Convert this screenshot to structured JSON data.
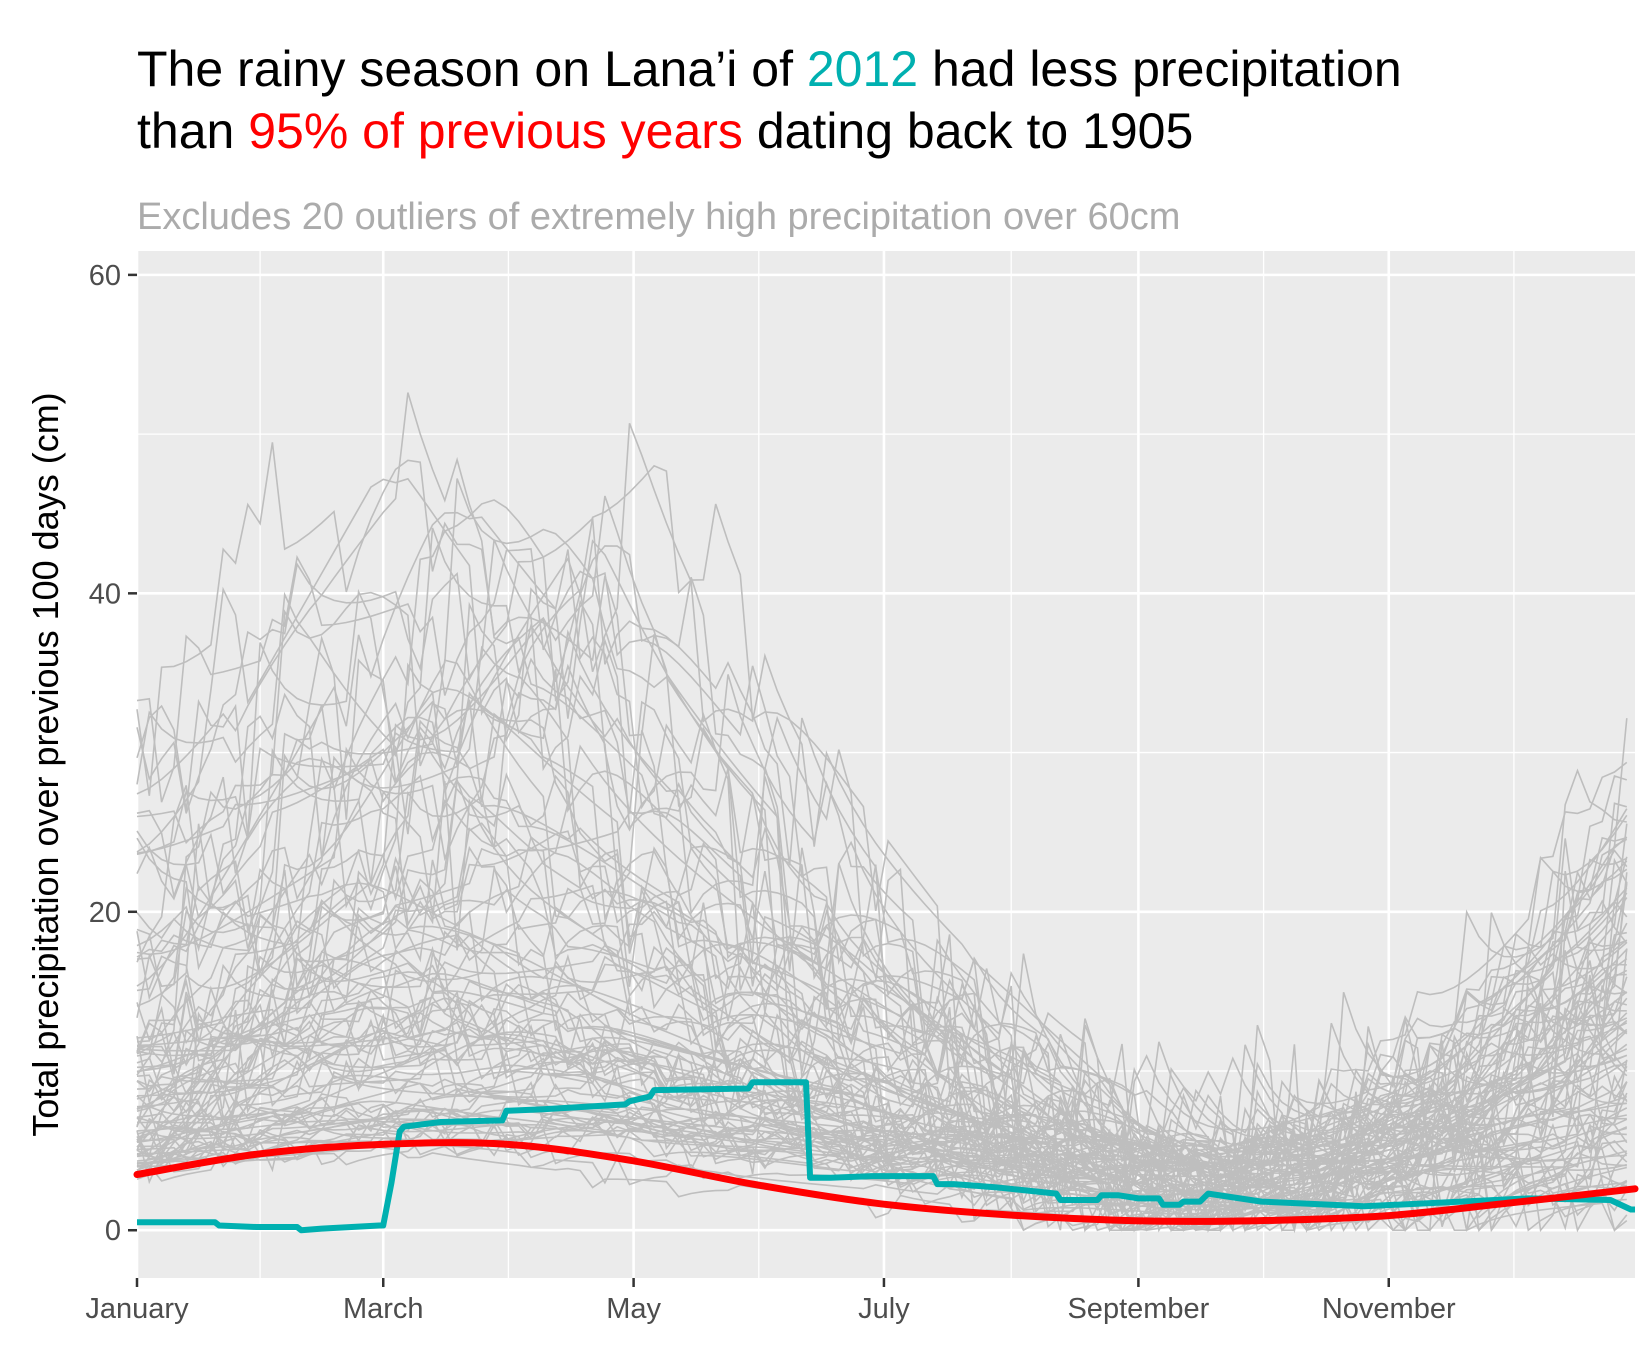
{
  "title": {
    "line1_a": "The rainy season on Lana’i of ",
    "line1_b": "2012",
    "line1_c": " had less precipitation",
    "line2_a": "than ",
    "line2_b": "95% of previous years",
    "line2_c": " dating back to 1905"
  },
  "subtitle": "Excludes 20 outliers of extremely high precipitation over 60cm",
  "colors": {
    "panel": "#ebebeb",
    "grid": "#ffffff",
    "background_lines": "#bebebe",
    "highlight": "#00b0b0",
    "threshold": "#ff0000"
  },
  "chart_data": {
    "type": "line",
    "title": "The rainy season on Lana’i of 2012 had less precipitation than 95% of previous years dating back to 1905",
    "xlabel": "",
    "ylabel": "Total precipitation over previous 100 days (cm)",
    "xlim": [
      1,
      366
    ],
    "ylim": [
      -3,
      61.5
    ],
    "grid": true,
    "x_ticks": [
      {
        "label": "January",
        "day": 1
      },
      {
        "label": "March",
        "day": 61
      },
      {
        "label": "May",
        "day": 122
      },
      {
        "label": "July",
        "day": 183
      },
      {
        "label": "September",
        "day": 245
      },
      {
        "label": "November",
        "day": 306
      }
    ],
    "y_ticks": [
      {
        "label": "0",
        "value": 0
      },
      {
        "label": "20",
        "value": 20
      },
      {
        "label": "40",
        "value": 40
      },
      {
        "label": "60",
        "value": 60
      }
    ],
    "series": [
      {
        "name": "2012",
        "role": "highlight",
        "x": [
          1,
          20,
          21,
          30,
          40,
          41,
          46,
          60,
          61,
          63,
          65,
          66,
          75,
          90,
          91,
          100,
          120,
          121,
          126,
          127,
          150,
          151,
          152,
          160,
          164,
          165,
          170,
          180,
          190,
          195,
          196,
          200,
          205,
          210,
          225,
          226,
          235,
          236,
          240,
          245,
          250,
          251,
          255,
          256,
          260,
          262,
          275,
          300,
          340,
          360,
          365,
          366
        ],
        "y": [
          0.5,
          0.5,
          0.3,
          0.2,
          0.2,
          0,
          0.1,
          0.3,
          0.3,
          3,
          6.2,
          6.5,
          6.8,
          6.9,
          7.5,
          7.6,
          7.9,
          8.1,
          8.4,
          8.8,
          8.9,
          9.3,
          9.3,
          9.3,
          9.3,
          3.3,
          3.3,
          3.4,
          3.4,
          3.4,
          2.9,
          2.9,
          2.8,
          2.7,
          2.3,
          1.9,
          1.9,
          2.2,
          2.2,
          2.0,
          2.0,
          1.6,
          1.6,
          1.8,
          1.8,
          2.3,
          1.8,
          1.5,
          2.0,
          1.9,
          1.3,
          1.3
        ]
      },
      {
        "name": "95% of previous years",
        "role": "threshold",
        "x": [
          1,
          31,
          61,
          91,
          121,
          151,
          181,
          211,
          244,
          274,
          305,
          335,
          366
        ],
        "y": [
          3.5,
          4.8,
          5.4,
          5.4,
          4.4,
          2.9,
          1.7,
          1.0,
          0.6,
          0.6,
          0.9,
          1.7,
          2.6
        ]
      }
    ],
    "background_years": {
      "count": 96,
      "color": "#bebebe",
      "description_visible": false
    }
  }
}
